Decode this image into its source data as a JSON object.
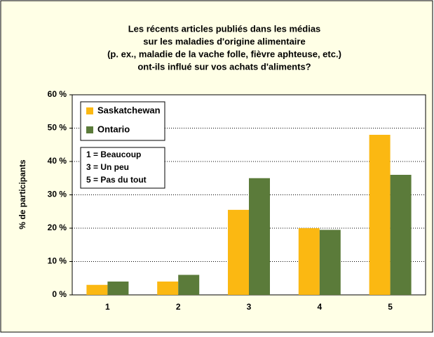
{
  "chart_data": {
    "type": "bar",
    "title": [
      "Les récents articles publiés dans les médias",
      "sur les maladies d'origine alimentaire",
      "(p. ex., maladie de la vache folle, fièvre aphteuse, etc.)",
      "ont-ils influé sur vos achats d'aliments?"
    ],
    "y_label": "% de participants",
    "categories": [
      "1",
      "2",
      "3",
      "4",
      "5"
    ],
    "series": [
      {
        "name": "Saskatchewan",
        "color": "#fbb812",
        "values": [
          3,
          4,
          25.5,
          20,
          48
        ]
      },
      {
        "name": "Ontario",
        "color": "#5b7b3a",
        "values": [
          4,
          6,
          35,
          19.5,
          36
        ]
      }
    ],
    "annotations": [
      "1 = Beaucoup",
      "3 = Un peu",
      "5 = Pas du tout"
    ],
    "ylim": [
      0,
      60
    ],
    "yticks": [
      {
        "value": 0,
        "label": "0 %"
      },
      {
        "value": 10,
        "label": "10 %"
      },
      {
        "value": 20,
        "label": "20 %"
      },
      {
        "value": 30,
        "label": "30 %"
      },
      {
        "value": 40,
        "label": "40 %"
      },
      {
        "value": 50,
        "label": "50 %"
      },
      {
        "value": 60,
        "label": "60 %"
      }
    ],
    "grid": true,
    "legend": "upper left"
  }
}
